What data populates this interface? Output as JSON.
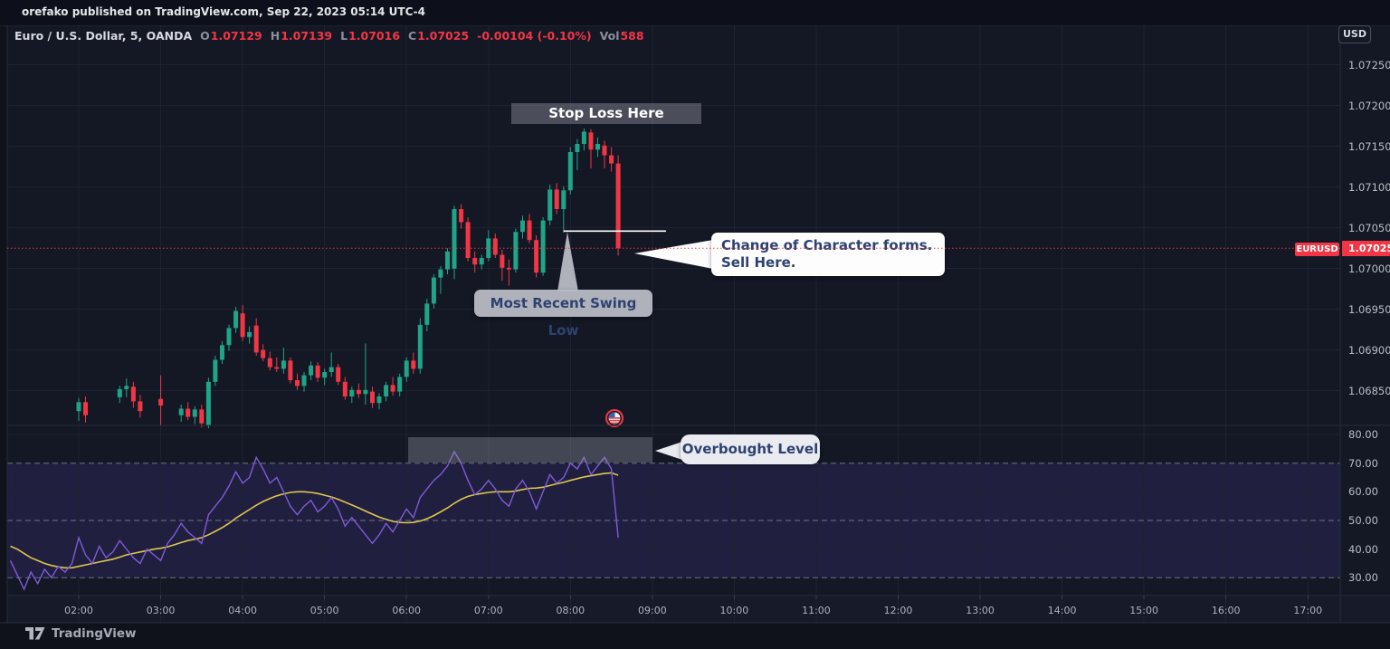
{
  "header": {
    "publish_note": "orefako published on TradingView.com, Sep 22, 2023 05:14 UTC-4"
  },
  "toolbar": {
    "currency_button": "USD"
  },
  "legend": {
    "symbol": "Euro / U.S. Dollar, 5, OANDA",
    "o_label": "O",
    "o_value": "1.07129",
    "h_label": "H",
    "h_value": "1.07139",
    "l_label": "L",
    "l_value": "1.07016",
    "c_label": "C",
    "c_value": "1.07025",
    "change": "-0.00104 (-0.10%)",
    "vol_label": "Vol",
    "vol_value": "588"
  },
  "annotations": {
    "stop_loss": "Stop Loss Here",
    "swing_low": "Most Recent Swing Low",
    "choch_line1": "Change of Character forms.",
    "choch_line2": "Sell Here.",
    "overbought": "Overbought Level"
  },
  "price_scale": {
    "labels": [
      "1.07250",
      "1.07200",
      "1.07150",
      "1.07100",
      "1.07050",
      "1.07000",
      "1.06950",
      "1.06900",
      "1.06850"
    ],
    "current_price_label": "1.07025",
    "symbol_tag": "EURUSD"
  },
  "rsi_scale": {
    "labels": [
      "80.00",
      "70.00",
      "60.00",
      "50.00",
      "40.00",
      "30.00"
    ]
  },
  "time_scale": {
    "labels": [
      "02:00",
      "03:00",
      "04:00",
      "05:00",
      "06:00",
      "07:00",
      "08:00",
      "09:00",
      "10:00",
      "11:00",
      "12:00",
      "13:00",
      "14:00",
      "15:00",
      "16:00",
      "17:00"
    ]
  },
  "footer": {
    "brand": "TradingView"
  },
  "colors": {
    "background": "#0f121b",
    "pane": "#141824",
    "grid": "#1d2230",
    "border": "#272c3a",
    "up": "#20a488",
    "down": "#f23645",
    "rsi_line": "#7d5bd8",
    "rsi_ma": "#dcc64e",
    "rsi_band_fill": "rgba(126,84,255,0.13)",
    "band_dash": "#8a8e9b",
    "current_price_line": "#f23645",
    "swing_line": "#ffffff",
    "label_tag": "#f23645"
  },
  "chart_data": {
    "type": "candlestick",
    "title": "Euro / U.S. Dollar",
    "symbol": "EURUSD",
    "venue": "OANDA",
    "interval_minutes": 5,
    "first_candle_time": "02:00",
    "last_candle_time": "08:35",
    "price_axis": {
      "min": 1.068,
      "max": 1.0725,
      "tick": 0.0005
    },
    "levels": {
      "current_price": 1.07025,
      "swing_low": 1.07046,
      "stop_loss_zone": [
        1.07177,
        1.07203
      ],
      "session_high": 1.07172,
      "session_low": 1.06804
    },
    "last_bar_ohlc": {
      "o": 1.07129,
      "h": 1.07139,
      "l": 1.07016,
      "c": 1.07025,
      "change": -0.00104,
      "change_pct": -0.1,
      "volume": 588
    },
    "candles": [
      [
        1.06825,
        1.06841,
        1.06813,
        1.06836
      ],
      [
        1.06836,
        1.06843,
        1.06811,
        1.0682
      ],
      null,
      null,
      null,
      null,
      [
        1.06842,
        1.06856,
        1.06835,
        1.06852
      ],
      [
        1.06852,
        1.06865,
        1.06842,
        1.06856
      ],
      [
        1.06855,
        1.06861,
        1.06829,
        1.06837
      ],
      [
        1.06837,
        1.06845,
        1.06817,
        1.06825
      ],
      null,
      null,
      [
        1.0684,
        1.06869,
        1.06807,
        1.06832
      ],
      null,
      null,
      [
        1.0682,
        1.06833,
        1.06812,
        1.06828
      ],
      [
        1.06828,
        1.06836,
        1.06814,
        1.06818
      ],
      [
        1.06818,
        1.06831,
        1.06809,
        1.06827
      ],
      [
        1.06827,
        1.06833,
        1.06805,
        1.0681
      ],
      [
        1.06808,
        1.06866,
        1.06804,
        1.06861
      ],
      [
        1.06861,
        1.06893,
        1.06856,
        1.06888
      ],
      [
        1.06888,
        1.06911,
        1.06883,
        1.06906
      ],
      [
        1.06906,
        1.06931,
        1.06899,
        1.06927
      ],
      [
        1.06927,
        1.06953,
        1.06921,
        1.06948
      ],
      [
        1.06945,
        1.06955,
        1.06911,
        1.06916
      ],
      [
        1.06916,
        1.06929,
        1.06908,
        1.06922
      ],
      [
        1.0693,
        1.06939,
        1.06893,
        1.06897
      ],
      [
        1.069,
        1.06907,
        1.06886,
        1.0689
      ],
      [
        1.0689,
        1.06898,
        1.06875,
        1.06879
      ],
      [
        1.06879,
        1.06891,
        1.06873,
        1.06877
      ],
      [
        1.06877,
        1.06903,
        1.06871,
        1.06887
      ],
      [
        1.06887,
        1.06891,
        1.06859,
        1.06863
      ],
      [
        1.06863,
        1.06871,
        1.06851,
        1.06856
      ],
      [
        1.06856,
        1.06873,
        1.06849,
        1.06869
      ],
      [
        1.06869,
        1.06886,
        1.06863,
        1.06881
      ],
      [
        1.06881,
        1.06885,
        1.06861,
        1.06866
      ],
      [
        1.06866,
        1.06877,
        1.06857,
        1.06873
      ],
      [
        1.06873,
        1.06897,
        1.06867,
        1.06879
      ],
      [
        1.06879,
        1.06883,
        1.06857,
        1.06861
      ],
      [
        1.06861,
        1.06867,
        1.06839,
        1.06843
      ],
      [
        1.06843,
        1.06855,
        1.06835,
        1.06851
      ],
      [
        1.06851,
        1.06859,
        1.06841,
        1.06846
      ],
      [
        1.06846,
        1.06908,
        1.06833,
        1.06851
      ],
      [
        1.06849,
        1.06855,
        1.06829,
        1.06835
      ],
      [
        1.06835,
        1.06847,
        1.06827,
        1.06843
      ],
      [
        1.06843,
        1.06861,
        1.06837,
        1.06857
      ],
      [
        1.06857,
        1.06867,
        1.06844,
        1.06849
      ],
      [
        1.06849,
        1.06871,
        1.06843,
        1.06867
      ],
      [
        1.06867,
        1.06891,
        1.06861,
        1.06887
      ],
      [
        1.06887,
        1.06897,
        1.06871,
        1.06877
      ],
      [
        1.06877,
        1.06939,
        1.06871,
        1.06931
      ],
      [
        1.06931,
        1.06963,
        1.06923,
        1.06957
      ],
      [
        1.06957,
        1.06993,
        1.06951,
        1.06989
      ],
      [
        1.06989,
        1.07003,
        1.06969,
        1.06999
      ],
      [
        1.06999,
        1.07025,
        1.06993,
        1.07021
      ],
      [
        1.07,
        1.07077,
        1.06987,
        1.07073
      ],
      [
        1.07073,
        1.07079,
        1.07049,
        1.07057
      ],
      [
        1.07057,
        1.07063,
        1.07009,
        1.07013
      ],
      [
        1.07013,
        1.07021,
        1.06995,
        1.07005
      ],
      [
        1.07005,
        1.07017,
        1.06999,
        1.07013
      ],
      [
        1.07013,
        1.07047,
        1.07009,
        1.07037
      ],
      [
        1.07037,
        1.07043,
        1.07013,
        1.07017
      ],
      [
        1.07017,
        1.07023,
        1.06985,
        1.07001
      ],
      [
        1.07001,
        1.07011,
        1.06979,
        1.06999
      ],
      [
        1.06999,
        1.07049,
        1.06995,
        1.07045
      ],
      [
        1.07045,
        1.07065,
        1.07037,
        1.07059
      ],
      [
        1.07059,
        1.07067,
        1.07031,
        1.07035
      ],
      [
        1.07035,
        1.07041,
        1.06989,
        1.06995
      ],
      [
        1.06995,
        1.07063,
        1.06991,
        1.07059
      ],
      [
        1.07059,
        1.07103,
        1.07053,
        1.07097
      ],
      [
        1.07097,
        1.07105,
        1.07067,
        1.07073
      ],
      [
        1.07073,
        1.07101,
        1.07044,
        1.07096
      ],
      [
        1.07096,
        1.07149,
        1.07091,
        1.07143
      ],
      [
        1.07143,
        1.07159,
        1.07121,
        1.07153
      ],
      [
        1.07153,
        1.07172,
        1.07145,
        1.07168
      ],
      [
        1.07167,
        1.07171,
        1.07123,
        1.07146
      ],
      [
        1.07146,
        1.07161,
        1.07137,
        1.07153
      ],
      [
        1.07151,
        1.07157,
        1.07123,
        1.07139
      ],
      [
        1.07139,
        1.07149,
        1.07119,
        1.07129
      ],
      [
        1.07129,
        1.07139,
        1.07016,
        1.07025
      ]
    ],
    "indicator": {
      "type": "rsi",
      "upper_band": 70,
      "middle_band": 50,
      "lower_band": 30,
      "overbought_zone_rsi": [
        70,
        79
      ],
      "start_index": -10,
      "rsi_values": [
        36,
        31,
        26,
        32,
        28,
        33,
        30,
        34,
        32,
        35,
        44,
        38,
        35,
        41,
        37,
        39,
        43,
        40,
        37,
        35,
        40,
        38,
        36,
        42,
        45,
        49,
        46,
        44,
        42,
        52,
        55,
        58,
        62,
        67,
        63,
        65,
        72,
        68,
        63,
        65,
        60,
        55,
        52,
        55,
        57,
        53,
        55,
        58,
        54,
        48,
        51,
        48,
        45,
        42,
        45,
        49,
        46,
        50,
        54,
        51,
        58,
        61,
        64,
        66,
        69,
        74,
        70,
        64,
        59,
        61,
        64,
        61,
        57,
        55,
        61,
        64,
        60,
        54,
        60,
        66,
        63,
        65,
        70,
        68,
        72,
        66,
        69,
        72,
        68,
        44
      ],
      "ma_values": [
        41,
        40,
        38.5,
        37,
        36,
        35,
        34.3,
        33.8,
        33.5,
        33.5,
        34,
        34.5,
        35,
        35.5,
        36,
        36.5,
        37.2,
        38,
        38.5,
        39,
        39.5,
        40,
        40.3,
        40.8,
        41.5,
        42.3,
        43,
        43.5,
        44,
        45,
        46.2,
        47.5,
        49,
        50.8,
        52.3,
        53.8,
        55.3,
        56.6,
        57.7,
        58.6,
        59.3,
        59.8,
        60,
        60,
        59.8,
        59.4,
        58.8,
        58.2,
        57.4,
        56.4,
        55.4,
        54.4,
        53.3,
        52.2,
        51.2,
        50.4,
        49.7,
        49.3,
        49.2,
        49.3,
        49.8,
        50.6,
        51.7,
        53,
        54.4,
        56,
        57.4,
        58.4,
        59,
        59.4,
        59.8,
        60,
        60,
        60,
        60.3,
        60.8,
        61.2,
        61.3,
        61.6,
        62.2,
        62.8,
        63.3,
        64,
        64.6,
        65.2,
        65.6,
        66,
        66.4,
        66.6,
        65.8
      ]
    },
    "event_marker": {
      "type": "us-economic-event",
      "time": "08:30"
    }
  }
}
